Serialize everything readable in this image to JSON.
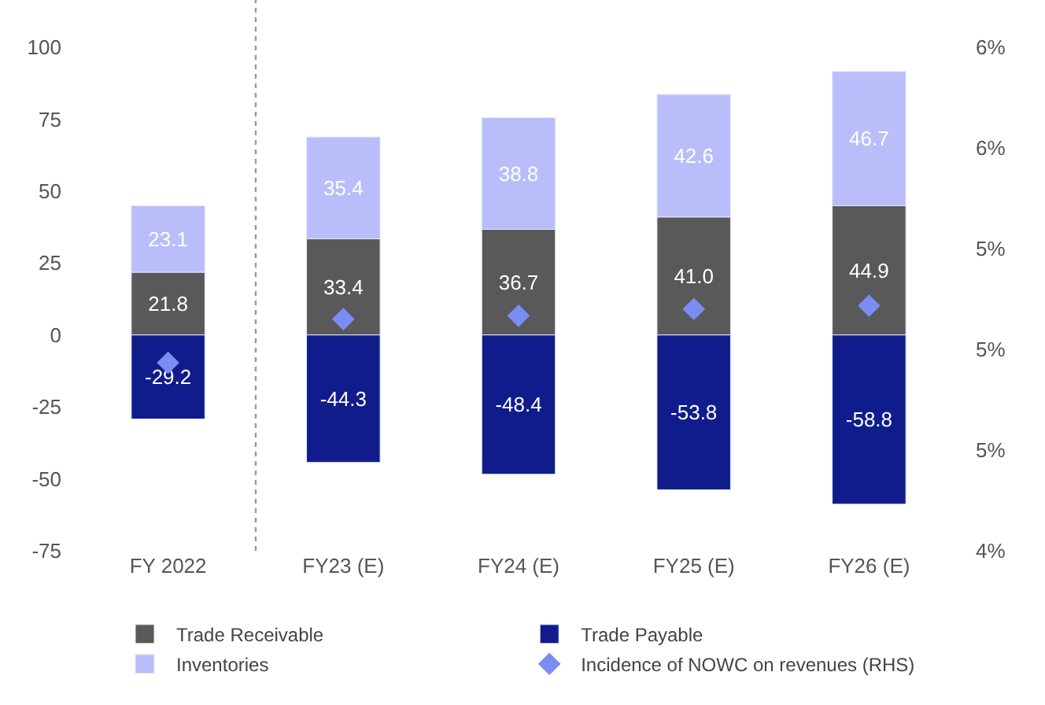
{
  "chart_data": {
    "type": "bar",
    "stacked": true,
    "categories": [
      "FY 2022",
      "FY23 (E)",
      "FY24 (E)",
      "FY25 (E)",
      "FY26 (E)"
    ],
    "series": [
      {
        "name": "Trade Receivable",
        "color": "#595959",
        "values": [
          21.8,
          33.4,
          36.7,
          41.0,
          44.9
        ],
        "value_labels": [
          "21.8",
          "33.4",
          "36.7",
          "41.0",
          "44.9"
        ]
      },
      {
        "name": "Trade Payable",
        "color": "#111c8c",
        "values": [
          -29.2,
          -44.3,
          -48.4,
          -53.8,
          -58.8
        ],
        "value_labels": [
          "-29.2",
          "-44.3",
          "-48.4",
          "-53.8",
          "-58.8"
        ]
      },
      {
        "name": "Inventories",
        "color": "#b9befa",
        "values": [
          23.1,
          35.4,
          38.8,
          42.6,
          46.7
        ],
        "value_labels": [
          "23.1",
          "35.4",
          "38.8",
          "42.6",
          "46.7"
        ]
      },
      {
        "name": "Incidence of NOWC on revenues (RHS)",
        "type": "scatter",
        "axis": "y2",
        "marker": "diamond",
        "color": "#7b8cf2",
        "values": [
          4.96,
          5.09,
          5.1,
          5.12,
          5.13
        ]
      }
    ],
    "ylim": [
      -75,
      100
    ],
    "yticks": [
      -75,
      -50,
      -25,
      0,
      25,
      50,
      75,
      100
    ],
    "y2lim": [
      4.4,
      5.9
    ],
    "y2ticks": [
      {
        "value": 4.4,
        "label": "4%"
      },
      {
        "value": 4.7,
        "label": "5%"
      },
      {
        "value": 5.0,
        "label": "5%"
      },
      {
        "value": 5.3,
        "label": "5%"
      },
      {
        "value": 5.6,
        "label": "6%"
      },
      {
        "value": 5.9,
        "label": "6%"
      }
    ],
    "legend": "bottom"
  }
}
